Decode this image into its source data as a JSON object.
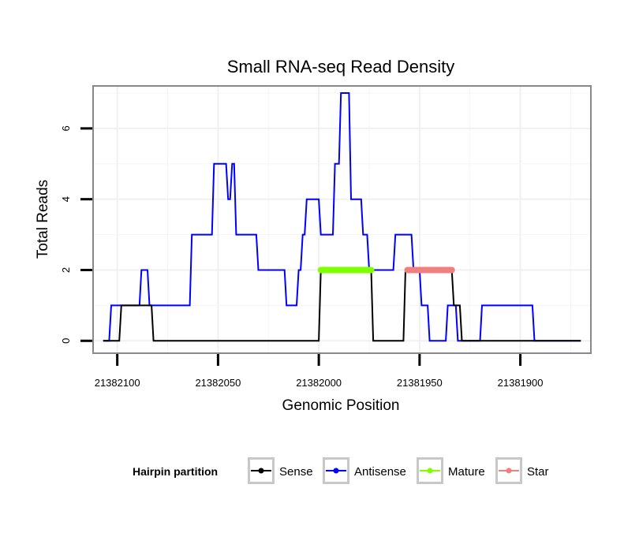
{
  "chart_data": {
    "type": "line",
    "title": "Small RNA-seq Read Density",
    "xlabel": "Genomic Position",
    "ylabel": "Total Reads",
    "x_reversed": true,
    "xlim": [
      21382112,
      21381865
    ],
    "ylim": [
      -0.35,
      7.2
    ],
    "xticks": [
      21382100,
      21382050,
      21382000,
      21381950,
      21381900
    ],
    "xtick_labels": [
      "21382100",
      "21382050",
      "21382000",
      "21381950",
      "21381900"
    ],
    "yticks": [
      0,
      2,
      4,
      6
    ],
    "ytick_labels": [
      "0",
      "2",
      "4",
      "6"
    ],
    "grid": true,
    "legend": {
      "title": "Hairpin partition",
      "position": "bottom",
      "entries": [
        {
          "label": "Sense",
          "color": "#000000"
        },
        {
          "label": "Antisense",
          "color": "#0000ff"
        },
        {
          "label": "Mature",
          "color": "#7fff00"
        },
        {
          "label": "Star",
          "color": "#f08080"
        }
      ]
    },
    "series": [
      {
        "name": "Antisense",
        "color": "#0000ff",
        "width": 2,
        "x": [
          21382107,
          21382104,
          21382103,
          21382089,
          21382088,
          21382085,
          21382084,
          21382064,
          21382063,
          21382053,
          21382052,
          21382046,
          21382045,
          21382044,
          21382043,
          21382042,
          21382041,
          21382031,
          21382030,
          21382017,
          21382016,
          21382011,
          21382010,
          21382009,
          21382008,
          21382007,
          21382006,
          21382000,
          21381999,
          21381993,
          21381992,
          21381990,
          21381989,
          21381985,
          21381984,
          21381979,
          21381978,
          21381976,
          21381975,
          21381963,
          21381962,
          21381954,
          21381953,
          21381950,
          21381949,
          21381946,
          21381945,
          21381937,
          21381936,
          21381932,
          21381931,
          21381920,
          21381919,
          21381894,
          21381893,
          21381870
        ],
        "y": [
          0,
          0,
          1,
          1,
          2,
          2,
          1,
          1,
          3,
          3,
          5,
          5,
          4,
          4,
          5,
          5,
          3,
          3,
          2,
          2,
          1,
          1,
          2,
          2,
          3,
          3,
          4,
          4,
          3,
          3,
          5,
          5,
          7,
          7,
          4,
          4,
          3,
          3,
          2,
          2,
          3,
          3,
          2,
          2,
          1,
          1,
          0,
          0,
          1,
          1,
          0,
          0,
          1,
          1,
          0,
          0
        ]
      },
      {
        "name": "Sense",
        "color": "#000000",
        "width": 2,
        "x": [
          21382107,
          21382099,
          21382098,
          21382083,
          21382082,
          21382000,
          21381999,
          21381974,
          21381973,
          21381958,
          21381957,
          21381934,
          21381933,
          21381930,
          21381929,
          21381870
        ],
        "y": [
          0,
          0,
          1,
          1,
          0,
          0,
          2,
          2,
          0,
          0,
          2,
          2,
          1,
          1,
          0,
          0
        ]
      },
      {
        "name": "Mature",
        "color": "#7fff00",
        "width": 8,
        "x": [
          21381999,
          21381974
        ],
        "y": [
          2,
          2
        ]
      },
      {
        "name": "Star",
        "color": "#f08080",
        "width": 8,
        "x": [
          21381956,
          21381934
        ],
        "y": [
          2,
          2
        ]
      }
    ]
  }
}
